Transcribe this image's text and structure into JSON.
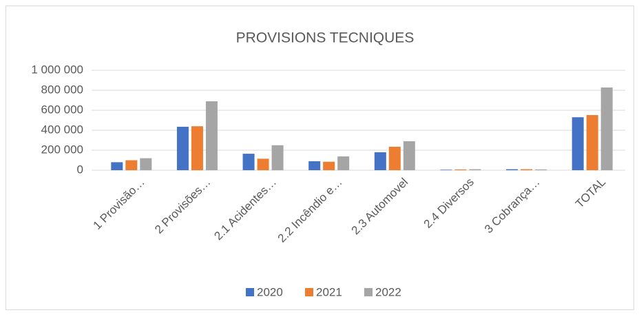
{
  "chart_data": {
    "type": "bar",
    "title": "PROVISIONS TECNIQUES",
    "categories": [
      "1 Provisão…",
      "2 Provisões…",
      "2.1 Acidentes…",
      "2.2 Incêndio e…",
      "2.3 Automovel",
      "2.4 Diversos",
      "3 Cobrança…",
      "TOTAL"
    ],
    "series": [
      {
        "name": "2020",
        "color": "#4472c4",
        "values": [
          80000,
          435000,
          165000,
          90000,
          180000,
          5000,
          10000,
          530000
        ]
      },
      {
        "name": "2021",
        "color": "#ed7d31",
        "values": [
          100000,
          440000,
          115000,
          85000,
          235000,
          8000,
          10000,
          552000
        ]
      },
      {
        "name": "2022",
        "color": "#a5a5a5",
        "values": [
          120000,
          690000,
          250000,
          138000,
          290000,
          10000,
          8000,
          828000
        ]
      }
    ],
    "ylim": [
      0,
      1000000
    ],
    "yticks": [
      0,
      {
        "value": 200000,
        "label": "200 000"
      },
      {
        "value": 400000,
        "label": "400 000"
      },
      {
        "value": 600000,
        "label": "600 000"
      },
      {
        "value": 800000,
        "label": "800 000"
      },
      {
        "value": 1000000,
        "label": "1 000 000"
      }
    ],
    "grid": true,
    "legend": "bottom"
  }
}
